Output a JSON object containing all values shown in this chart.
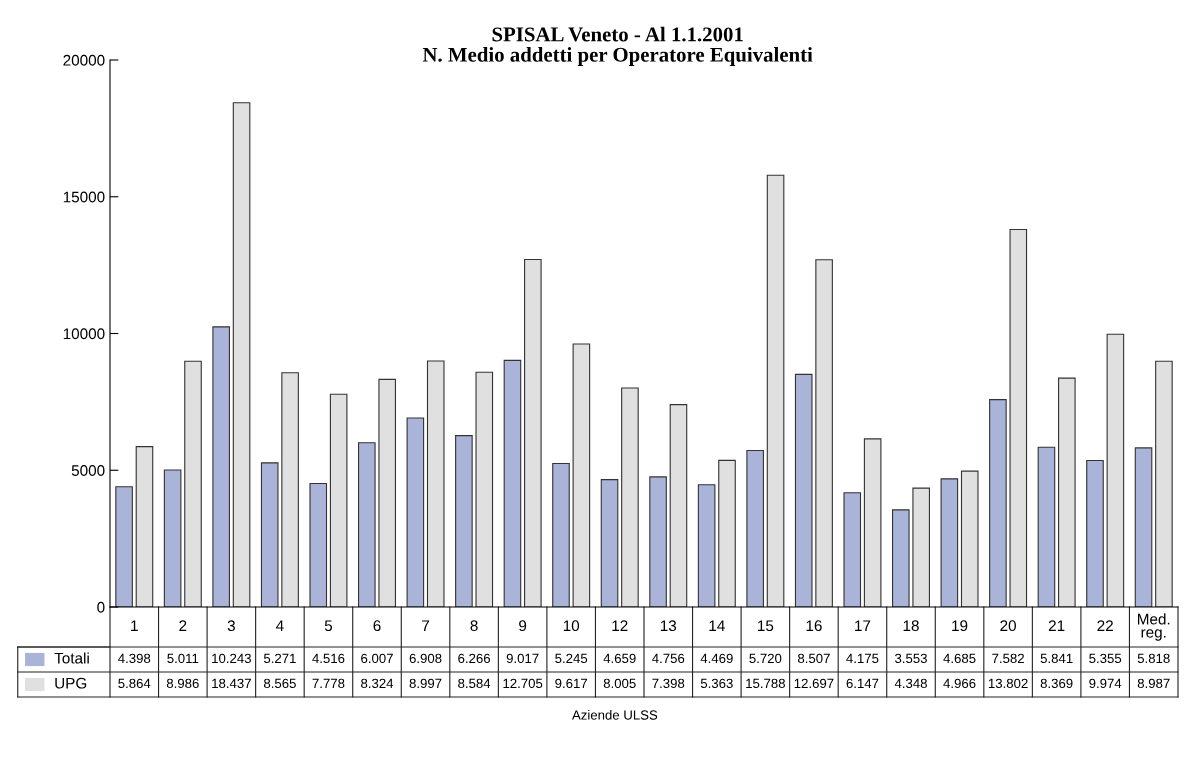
{
  "chart_data": {
    "type": "bar",
    "title": "SPISAL Veneto - Al 1.1.2001\nN. Medio addetti per Operatore Equivalenti",
    "annotations": [
      "Aziende ULSS"
    ],
    "categories": [
      "1",
      "2",
      "3",
      "4",
      "5",
      "6",
      "7",
      "8",
      "9",
      "10",
      "12",
      "13",
      "14",
      "15",
      "16",
      "17",
      "18",
      "19",
      "20",
      "21",
      "22",
      "Med.\nreg."
    ],
    "series": [
      {
        "name": "Totali",
        "color": "#a9b4d8",
        "values": [
          4398,
          5011,
          10243,
          5271,
          4516,
          6007,
          6908,
          6266,
          9017,
          5245,
          4659,
          4756,
          4469,
          5720,
          8507,
          4175,
          3553,
          4685,
          7582,
          5841,
          5355,
          5818
        ],
        "value_labels": [
          "4.398",
          "5.011",
          "10.243",
          "5.271",
          "4.516",
          "6.007",
          "6.908",
          "6.266",
          "9.017",
          "5.245",
          "4.659",
          "4.756",
          "4.469",
          "5.720",
          "8.507",
          "4.175",
          "3.553",
          "4.685",
          "7.582",
          "5.841",
          "5.355",
          "5.818"
        ]
      },
      {
        "name": "UPG",
        "color": "#e0e0e0",
        "values": [
          5864,
          8986,
          18437,
          8565,
          7778,
          8324,
          8997,
          8584,
          12705,
          9617,
          8005,
          7398,
          5363,
          15788,
          12697,
          6147,
          4348,
          4966,
          13802,
          8369,
          9974,
          8987
        ],
        "value_labels": [
          "5.864",
          "8.986",
          "18.437",
          "8.565",
          "7.778",
          "8.324",
          "8.997",
          "8.584",
          "12.705",
          "9.617",
          "8.005",
          "7.398",
          "5.363",
          "15.788",
          "12.697",
          "6.147",
          "4.348",
          "4.966",
          "13.802",
          "8.369",
          "9.974",
          "8.987"
        ]
      }
    ],
    "ylim": [
      0,
      20000
    ],
    "yticks": [
      0,
      5000,
      10000,
      15000,
      20000
    ],
    "grid": false,
    "legend": "bottom left"
  }
}
